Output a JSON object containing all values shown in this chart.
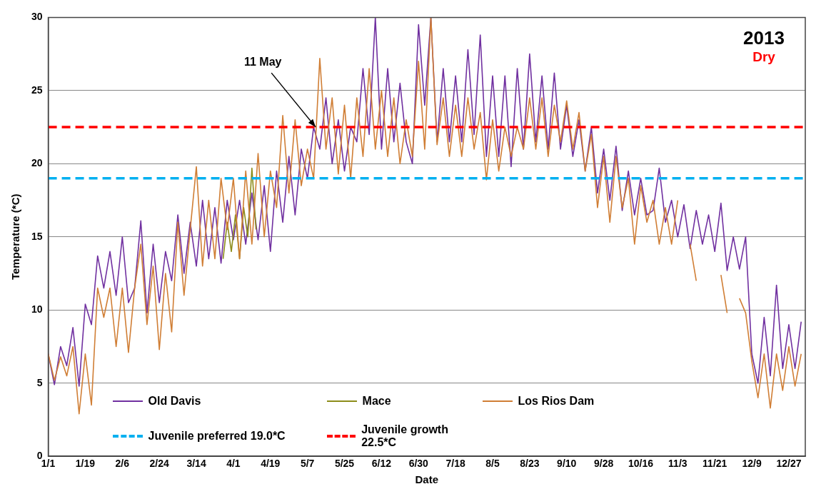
{
  "chart_data": {
    "type": "line",
    "xlabel": "Date",
    "ylabel": "Temperature (*C)",
    "x": [
      "2013-01-01",
      "2013-01-04",
      "2013-01-07",
      "2013-01-10",
      "2013-01-13",
      "2013-01-16",
      "2013-01-19",
      "2013-01-22",
      "2013-01-25",
      "2013-01-28",
      "2013-01-31",
      "2013-02-03",
      "2013-02-06",
      "2013-02-09",
      "2013-02-12",
      "2013-02-15",
      "2013-02-18",
      "2013-02-21",
      "2013-02-24",
      "2013-02-27",
      "2013-03-02",
      "2013-03-05",
      "2013-03-08",
      "2013-03-11",
      "2013-03-14",
      "2013-03-17",
      "2013-03-20",
      "2013-03-23",
      "2013-03-26",
      "2013-03-29",
      "2013-04-01",
      "2013-04-04",
      "2013-04-07",
      "2013-04-10",
      "2013-04-13",
      "2013-04-16",
      "2013-04-19",
      "2013-04-22",
      "2013-04-25",
      "2013-04-28",
      "2013-05-01",
      "2013-05-04",
      "2013-05-07",
      "2013-05-10",
      "2013-05-13",
      "2013-05-16",
      "2013-05-19",
      "2013-05-22",
      "2013-05-25",
      "2013-05-28",
      "2013-05-31",
      "2013-06-03",
      "2013-06-06",
      "2013-06-09",
      "2013-06-12",
      "2013-06-15",
      "2013-06-18",
      "2013-06-21",
      "2013-06-24",
      "2013-06-27",
      "2013-06-30",
      "2013-07-03",
      "2013-07-06",
      "2013-07-09",
      "2013-07-12",
      "2013-07-15",
      "2013-07-18",
      "2013-07-21",
      "2013-07-24",
      "2013-07-27",
      "2013-07-30",
      "2013-08-02",
      "2013-08-05",
      "2013-08-08",
      "2013-08-11",
      "2013-08-14",
      "2013-08-17",
      "2013-08-20",
      "2013-08-23",
      "2013-08-26",
      "2013-08-29",
      "2013-09-01",
      "2013-09-04",
      "2013-09-07",
      "2013-09-10",
      "2013-09-13",
      "2013-09-16",
      "2013-09-19",
      "2013-09-22",
      "2013-09-25",
      "2013-09-28",
      "2013-10-01",
      "2013-10-04",
      "2013-10-07",
      "2013-10-10",
      "2013-10-13",
      "2013-10-16",
      "2013-10-19",
      "2013-10-22",
      "2013-10-25",
      "2013-10-28",
      "2013-10-31",
      "2013-11-03",
      "2013-11-06",
      "2013-11-09",
      "2013-11-12",
      "2013-11-15",
      "2013-11-18",
      "2013-11-21",
      "2013-11-24",
      "2013-11-27",
      "2013-11-30",
      "2013-12-03",
      "2013-12-06",
      "2013-12-09",
      "2013-12-12",
      "2013-12-15",
      "2013-12-18",
      "2013-12-21",
      "2013-12-24",
      "2013-12-27",
      "2013-12-30",
      "2014-01-02"
    ],
    "series": [
      {
        "name": "Old Davis",
        "color": "#7030a0",
        "values": [
          7.0,
          4.9,
          7.5,
          6.2,
          8.8,
          4.8,
          10.4,
          9.0,
          13.7,
          11.5,
          14.0,
          11.0,
          15.0,
          10.5,
          11.5,
          16.1,
          9.8,
          14.5,
          10.5,
          14.0,
          12.0,
          16.5,
          12.5,
          16.0,
          13.0,
          17.5,
          13.5,
          17.0,
          13.2,
          17.5,
          14.8,
          17.5,
          14.5,
          18.0,
          14.8,
          18.5,
          14.0,
          19.5,
          16.0,
          20.5,
          16.5,
          21.0,
          19.0,
          22.5,
          21.0,
          24.5,
          20.0,
          23.0,
          19.5,
          22.5,
          21.5,
          26.5,
          22.0,
          30.0,
          21.0,
          26.5,
          21.5,
          25.5,
          21.5,
          20.0,
          29.5,
          24.0,
          30.0,
          21.5,
          26.5,
          21.5,
          26.0,
          21.5,
          27.8,
          22.0,
          28.8,
          20.5,
          26.0,
          20.5,
          26.0,
          19.8,
          26.5,
          21.0,
          27.5,
          21.5,
          26.0,
          21.0,
          26.2,
          21.0,
          24.0,
          20.5,
          23.0,
          19.5,
          22.5,
          18.0,
          21.0,
          17.5,
          21.2,
          16.8,
          19.5,
          16.5,
          19.0,
          16.5,
          16.8,
          19.7,
          16.0,
          17.5,
          15.0,
          17.2,
          14.2,
          16.8,
          14.5,
          16.5,
          14.0,
          17.3,
          12.7,
          15.0,
          12.8,
          15.0,
          7.0,
          5.0,
          9.5,
          5.5,
          11.7,
          6.0,
          9.0,
          6.0,
          9.2
        ]
      },
      {
        "name": "Mace",
        "color": "#8c8c1a",
        "x": [
          "2013-03-27",
          "2013-03-29",
          "2013-03-31",
          "2013-04-02",
          "2013-04-04",
          "2013-04-06",
          "2013-04-08",
          "2013-04-10",
          "2013-04-12"
        ],
        "values": [
          13.5,
          16.0,
          14.0,
          16.5,
          13.5,
          17.0,
          15.0,
          19.7,
          15.5
        ]
      },
      {
        "name": "Los Rios Dam",
        "color": "#d07e35",
        "values": [
          7.0,
          5.2,
          6.8,
          5.5,
          7.5,
          2.9,
          7.0,
          3.5,
          11.5,
          9.5,
          11.5,
          7.5,
          11.5,
          7.1,
          11.5,
          14.5,
          9.0,
          13.0,
          7.3,
          12.5,
          8.5,
          16.0,
          11.0,
          15.5,
          19.8,
          13.0,
          17.5,
          13.5,
          19.0,
          15.5,
          19.0,
          13.5,
          19.5,
          14.5,
          20.7,
          15.0,
          19.5,
          17.0,
          23.3,
          18.0,
          23.0,
          18.5,
          21.0,
          19.0,
          27.2,
          21.0,
          24.5,
          19.3,
          24.0,
          19.0,
          24.5,
          20.5,
          26.5,
          21.0,
          25.0,
          20.5,
          24.5,
          20.0,
          23.0,
          20.5,
          27.0,
          21.0,
          30.0,
          21.3,
          24.5,
          20.5,
          24.0,
          20.5,
          24.5,
          21.0,
          23.5,
          18.9,
          23.0,
          19.5,
          22.5,
          20.5,
          22.5,
          21.0,
          24.5,
          21.0,
          24.5,
          20.5,
          24.0,
          21.5,
          24.3,
          21.0,
          23.5,
          19.5,
          22.0,
          17.0,
          20.5,
          16.0,
          20.5,
          17.0,
          19.0,
          14.5,
          18.5,
          16.0,
          17.5,
          14.5,
          17.0,
          14.5,
          17.5,
          null,
          14.5,
          12.0,
          null,
          null,
          null,
          12.4,
          9.8,
          null,
          10.8,
          9.8,
          6.5,
          4.0,
          7.0,
          3.3,
          7.0,
          4.5,
          7.5,
          4.8,
          7.0
        ]
      },
      {
        "name": "Juvenile preferred 19.0*C",
        "color": "#00b0f0",
        "line_style": "dashed",
        "x": [
          "2013-01-01",
          "2014-01-04"
        ],
        "values": [
          19.0,
          19.0
        ]
      },
      {
        "name": "Juvenile growth 22.5*C",
        "color": "#ff0000",
        "line_style": "dashed",
        "x": [
          "2013-01-01",
          "2014-01-04"
        ],
        "values": [
          22.5,
          22.5
        ]
      }
    ],
    "xlim": [
      "2013-01-01",
      "2014-01-04"
    ],
    "xticks": [
      {
        "value": "2013-01-01",
        "label": "1/1"
      },
      {
        "value": "2013-01-19",
        "label": "1/19"
      },
      {
        "value": "2013-02-06",
        "label": "2/6"
      },
      {
        "value": "2013-02-24",
        "label": "2/24"
      },
      {
        "value": "2013-03-14",
        "label": "3/14"
      },
      {
        "value": "2013-04-01",
        "label": "4/1"
      },
      {
        "value": "2013-04-19",
        "label": "4/19"
      },
      {
        "value": "2013-05-07",
        "label": "5/7"
      },
      {
        "value": "2013-05-25",
        "label": "5/25"
      },
      {
        "value": "2013-06-12",
        "label": "6/12"
      },
      {
        "value": "2013-06-30",
        "label": "6/30"
      },
      {
        "value": "2013-07-18",
        "label": "7/18"
      },
      {
        "value": "2013-08-05",
        "label": "8/5"
      },
      {
        "value": "2013-08-23",
        "label": "8/23"
      },
      {
        "value": "2013-09-10",
        "label": "9/10"
      },
      {
        "value": "2013-09-28",
        "label": "9/28"
      },
      {
        "value": "2013-10-16",
        "label": "10/16"
      },
      {
        "value": "2013-11-03",
        "label": "11/3"
      },
      {
        "value": "2013-11-21",
        "label": "11/21"
      },
      {
        "value": "2013-12-09",
        "label": "12/9"
      },
      {
        "value": "2013-12-27",
        "label": "12/27"
      }
    ],
    "ylim": [
      0,
      30
    ],
    "yticks": [
      0,
      5,
      10,
      15,
      20,
      25,
      30
    ],
    "grid": "y",
    "legend": "bottom",
    "marker": "none",
    "line_style": "solid",
    "annotations": [
      "2013",
      "Dry",
      {
        "text": "11 May",
        "x": "2013-05-11",
        "y": 22.5
      }
    ]
  }
}
